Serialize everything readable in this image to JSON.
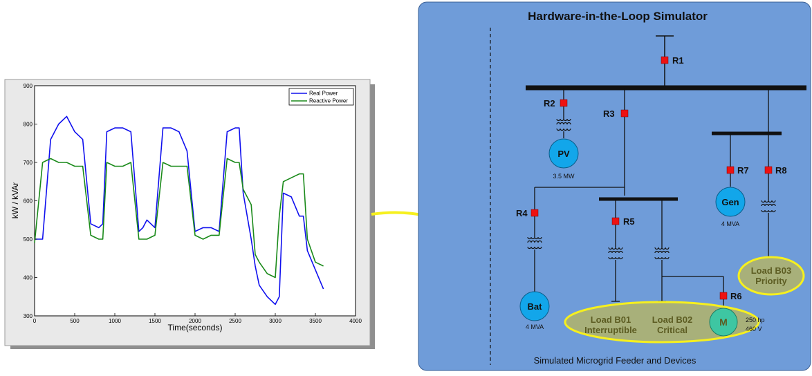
{
  "chart_data": {
    "type": "line",
    "x_label": "Time(seconds)",
    "y_label": "kW / kVAr",
    "x_ticks": [
      0,
      500,
      1000,
      1500,
      2000,
      2500,
      3000,
      3500,
      4000
    ],
    "y_ticks": [
      300,
      400,
      500,
      600,
      700,
      800,
      900
    ],
    "xlim": [
      0,
      4000
    ],
    "ylim": [
      300,
      900
    ],
    "grid": false,
    "legend_position": "top-right",
    "series": [
      {
        "name": "Real Power",
        "color": "#1010ee",
        "x": [
          0,
          100,
          200,
          300,
          400,
          500,
          600,
          700,
          800,
          850,
          900,
          1000,
          1100,
          1200,
          1300,
          1350,
          1400,
          1500,
          1600,
          1700,
          1800,
          1900,
          2000,
          2100,
          2200,
          2300,
          2400,
          2500,
          2550,
          2600,
          2700,
          2750,
          2800,
          2900,
          3000,
          3050,
          3100,
          3200,
          3300,
          3350,
          3400,
          3500,
          3600
        ],
        "y": [
          500,
          500,
          760,
          800,
          820,
          780,
          760,
          540,
          530,
          540,
          780,
          790,
          790,
          780,
          520,
          530,
          550,
          530,
          790,
          790,
          780,
          730,
          520,
          530,
          530,
          520,
          780,
          790,
          790,
          620,
          500,
          430,
          380,
          350,
          330,
          350,
          620,
          610,
          560,
          560,
          470,
          420,
          370
        ]
      },
      {
        "name": "Reactive Power",
        "color": "#1a8a1a",
        "x": [
          0,
          100,
          200,
          300,
          400,
          500,
          600,
          700,
          800,
          850,
          900,
          1000,
          1100,
          1200,
          1300,
          1350,
          1400,
          1500,
          1600,
          1700,
          1800,
          1900,
          2000,
          2100,
          2200,
          2300,
          2400,
          2500,
          2550,
          2600,
          2700,
          2750,
          2800,
          2900,
          3000,
          3050,
          3100,
          3200,
          3300,
          3350,
          3400,
          3500,
          3600
        ],
        "y": [
          490,
          700,
          710,
          700,
          700,
          690,
          690,
          510,
          500,
          500,
          700,
          690,
          690,
          700,
          500,
          500,
          500,
          510,
          700,
          690,
          690,
          690,
          510,
          500,
          510,
          510,
          710,
          700,
          700,
          630,
          590,
          460,
          440,
          410,
          400,
          560,
          650,
          660,
          670,
          670,
          500,
          440,
          430
        ]
      }
    ]
  },
  "diagram": {
    "title": "Hardware-in-the-Loop Simulator",
    "footer": "Simulated Microgrid Feeder and Devices",
    "relays": [
      "R1",
      "R2",
      "R3",
      "R4",
      "R5",
      "R6",
      "R7",
      "R8"
    ],
    "devices": {
      "pv": {
        "label": "PV",
        "rating": "3.5 MW"
      },
      "gen": {
        "label": "Gen",
        "rating": "4 MVA"
      },
      "bat": {
        "label": "Bat",
        "rating": "4 MVA"
      },
      "motor": {
        "label": "M",
        "rating_1": "250 hp",
        "rating_2": "460 V"
      }
    },
    "loads": {
      "b01": {
        "name": "Load B01",
        "type": "Interruptible"
      },
      "b02": {
        "name": "Load B02",
        "type": "Critical"
      },
      "b03": {
        "name": "Load B03",
        "type": "Priority"
      }
    }
  },
  "colors": {
    "panel_bg": "#6f9cd9",
    "relay": "#ee1111",
    "device_circle": "#12a6ea",
    "motor_circle": "#3ec6a2",
    "highlight": "#f6f01e",
    "load_fill": "#a8b07a",
    "load_text": "#5c5c22"
  }
}
